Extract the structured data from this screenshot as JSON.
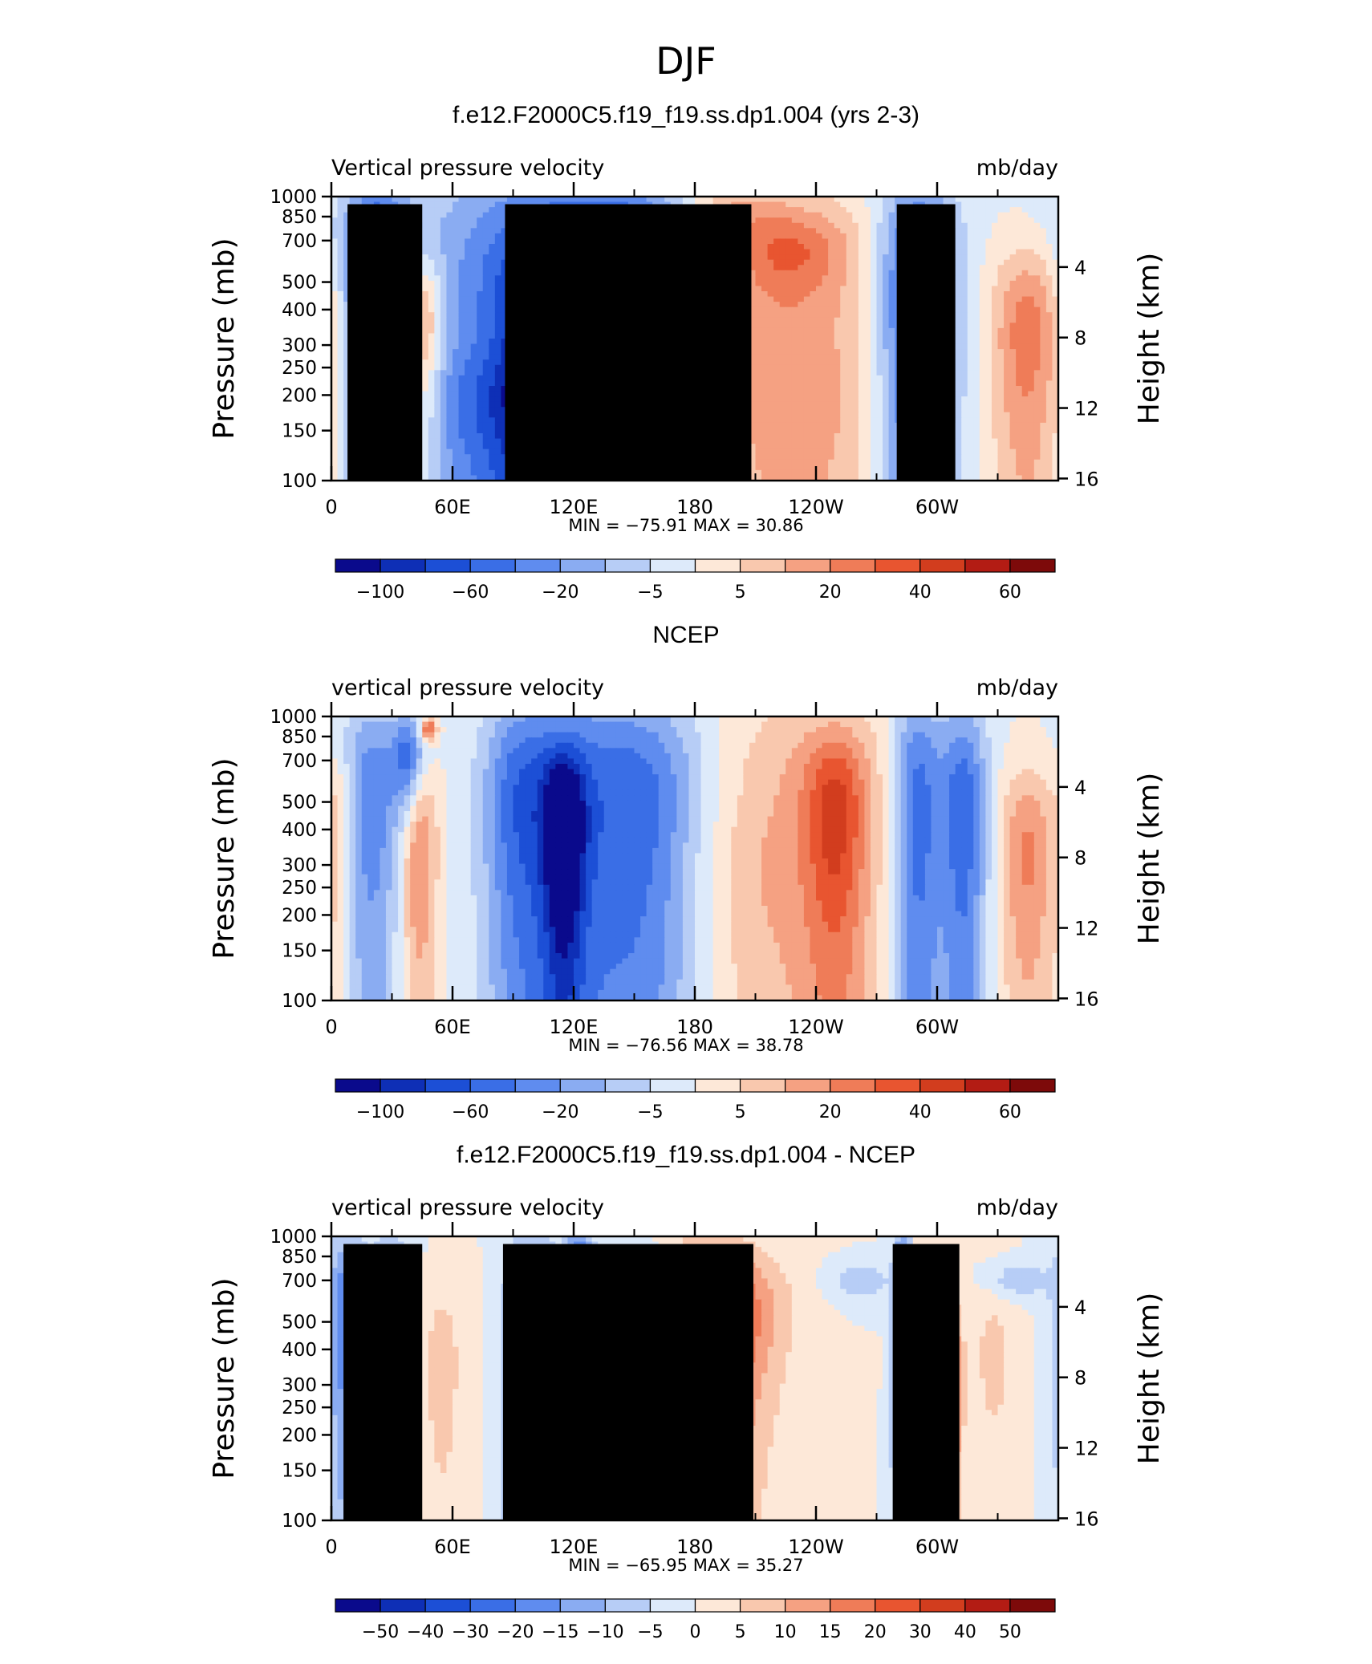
{
  "figure": {
    "super_title": "DJF"
  },
  "chart_data": [
    {
      "type": "heatmap",
      "title": "f.e12.F2000C5.f19_f19.ss.dp1.004 (yrs 2-3)",
      "left_label": "Vertical pressure velocity",
      "right_label": "mb/day",
      "ylabel": "Pressure (mb)",
      "ylabel_right": "Height (km)",
      "x_ticks": [
        "0",
        "60E",
        "120E",
        "180",
        "120W",
        "60W"
      ],
      "x_tick_lon": [
        0,
        60,
        120,
        180,
        240,
        300
      ],
      "xlim": [
        0,
        360
      ],
      "y_ticks": [
        "100",
        "150",
        "200",
        "250",
        "300",
        "400",
        "500",
        "700",
        "850",
        "1000"
      ],
      "y_tick_p": [
        100,
        150,
        200,
        250,
        300,
        400,
        500,
        700,
        850,
        1000
      ],
      "ylim": [
        1000,
        100
      ],
      "y_scale": "log",
      "height_ticks": [
        "16",
        "12",
        "8",
        "4"
      ],
      "height_tick_km": [
        16,
        12,
        8,
        4
      ],
      "stats": "MIN = −75.91   MAX =   30.86",
      "colorbar_labels": [
        "−100",
        "−60",
        "−20",
        "−5",
        "5",
        "20",
        "40",
        "60"
      ],
      "colorbar_label_slots": [
        1,
        3,
        5,
        7,
        9,
        11,
        13,
        15
      ],
      "blobs": [
        {
          "lon": 5,
          "p": 250,
          "w": 8,
          "h": 180,
          "v": 8
        },
        {
          "lon": 22,
          "p": 500,
          "w": 16,
          "h": 600,
          "v": -55
        },
        {
          "lon": 26,
          "p": 300,
          "w": 6,
          "h": 80,
          "v": -20
        },
        {
          "lon": 45,
          "p": 350,
          "w": 10,
          "h": 260,
          "v": 40
        },
        {
          "lon": 120,
          "p": 450,
          "w": 70,
          "h": 800,
          "v": -55
        },
        {
          "lon": 105,
          "p": 350,
          "w": 20,
          "h": 300,
          "v": -30
        },
        {
          "lon": 125,
          "p": 350,
          "w": 15,
          "h": 300,
          "v": -30
        },
        {
          "lon": 155,
          "p": 620,
          "w": 26,
          "h": 260,
          "v": -45
        },
        {
          "lon": 100,
          "p": 180,
          "w": 60,
          "h": 100,
          "v": -20
        },
        {
          "lon": 215,
          "p": 420,
          "w": 55,
          "h": 650,
          "v": 30
        },
        {
          "lon": 225,
          "p": 650,
          "w": 30,
          "h": 200,
          "v": 20
        },
        {
          "lon": 228,
          "p": 180,
          "w": 50,
          "h": 120,
          "v": 6
        },
        {
          "lon": 290,
          "p": 450,
          "w": 20,
          "h": 650,
          "v": -55
        },
        {
          "lon": 345,
          "p": 320,
          "w": 18,
          "h": 300,
          "v": 35
        },
        {
          "lon": 195,
          "p": 900,
          "w": 30,
          "h": 160,
          "v": 15
        }
      ],
      "land_bars": [
        {
          "lon0": 8,
          "lon1": 45,
          "p0": 940
        },
        {
          "lon0": 31,
          "lon1": 41,
          "p0": 860
        },
        {
          "lon0": 86,
          "lon1": 208,
          "p0": 940
        },
        {
          "lon0": 280,
          "lon1": 309,
          "p0": 940
        }
      ]
    },
    {
      "type": "heatmap",
      "title": "NCEP",
      "left_label": "vertical pressure velocity",
      "right_label": "mb/day",
      "ylabel": "Pressure (mb)",
      "ylabel_right": "Height (km)",
      "x_ticks": [
        "0",
        "60E",
        "120E",
        "180",
        "120W",
        "60W"
      ],
      "x_tick_lon": [
        0,
        60,
        120,
        180,
        240,
        300
      ],
      "xlim": [
        0,
        360
      ],
      "y_ticks": [
        "100",
        "150",
        "200",
        "250",
        "300",
        "400",
        "500",
        "700",
        "850",
        "1000"
      ],
      "y_tick_p": [
        100,
        150,
        200,
        250,
        300,
        400,
        500,
        700,
        850,
        1000
      ],
      "ylim": [
        1000,
        100
      ],
      "y_scale": "log",
      "height_ticks": [
        "16",
        "12",
        "8",
        "4"
      ],
      "height_tick_km": [
        16,
        12,
        8,
        4
      ],
      "stats": "MIN = −76.56   MAX =   38.78",
      "colorbar_labels": [
        "−100",
        "−60",
        "−20",
        "−5",
        "5",
        "20",
        "40",
        "60"
      ],
      "colorbar_label_slots": [
        1,
        3,
        5,
        7,
        9,
        11,
        13,
        15
      ],
      "blobs": [
        {
          "lon": 4,
          "p": 400,
          "w": 6,
          "h": 300,
          "v": 15
        },
        {
          "lon": 20,
          "p": 500,
          "w": 14,
          "h": 600,
          "v": -35
        },
        {
          "lon": 38,
          "p": 700,
          "w": 8,
          "h": 300,
          "v": -40
        },
        {
          "lon": 43,
          "p": 350,
          "w": 9,
          "h": 300,
          "v": 35
        },
        {
          "lon": 48,
          "p": 900,
          "w": 4,
          "h": 80,
          "v": 45
        },
        {
          "lon": 110,
          "p": 450,
          "w": 30,
          "h": 800,
          "v": -40
        },
        {
          "lon": 155,
          "p": 450,
          "w": 30,
          "h": 700,
          "v": -40
        },
        {
          "lon": 115,
          "p": 400,
          "w": 10,
          "h": 300,
          "v": -55
        },
        {
          "lon": 90,
          "p": 500,
          "w": 15,
          "h": 500,
          "v": -20
        },
        {
          "lon": 235,
          "p": 450,
          "w": 45,
          "h": 700,
          "v": 20
        },
        {
          "lon": 250,
          "p": 450,
          "w": 15,
          "h": 400,
          "v": 35
        },
        {
          "lon": 290,
          "p": 450,
          "w": 12,
          "h": 700,
          "v": -45
        },
        {
          "lon": 313,
          "p": 450,
          "w": 12,
          "h": 600,
          "v": -45
        },
        {
          "lon": 345,
          "p": 320,
          "w": 14,
          "h": 300,
          "v": 30
        },
        {
          "lon": 200,
          "p": 250,
          "w": 35,
          "h": 200,
          "v": 6
        }
      ],
      "land_bars": []
    },
    {
      "type": "heatmap",
      "title": "f.e12.F2000C5.f19_f19.ss.dp1.004 - NCEP",
      "left_label": "vertical pressure velocity",
      "right_label": "mb/day",
      "ylabel": "Pressure (mb)",
      "ylabel_right": "Height (km)",
      "x_ticks": [
        "0",
        "60E",
        "120E",
        "180",
        "120W",
        "60W"
      ],
      "x_tick_lon": [
        0,
        60,
        120,
        180,
        240,
        300
      ],
      "xlim": [
        0,
        360
      ],
      "y_ticks": [
        "100",
        "150",
        "200",
        "250",
        "300",
        "400",
        "500",
        "700",
        "850",
        "1000"
      ],
      "y_tick_p": [
        100,
        150,
        200,
        250,
        300,
        400,
        500,
        700,
        850,
        1000
      ],
      "ylim": [
        1000,
        100
      ],
      "y_scale": "log",
      "height_ticks": [
        "16",
        "12",
        "8",
        "4"
      ],
      "height_tick_km": [
        16,
        12,
        8,
        4
      ],
      "stats": "MIN = −65.95   MAX =   35.27",
      "colorbar_labels": [
        "−50",
        "−40",
        "−30",
        "−20",
        "−15",
        "−10",
        "−5",
        "0",
        "5",
        "10",
        "15",
        "20",
        "30",
        "40",
        "50"
      ],
      "colorbar_label_slots": [
        1,
        2,
        3,
        4,
        5,
        6,
        7,
        8,
        9,
        10,
        11,
        12,
        13,
        14,
        15
      ],
      "blobs": [
        {
          "lon": 8,
          "p": 500,
          "w": 10,
          "h": 500,
          "v": -25
        },
        {
          "lon": 22,
          "p": 350,
          "w": 8,
          "h": 300,
          "v": -35
        },
        {
          "lon": 30,
          "p": 650,
          "w": 8,
          "h": 300,
          "v": -25
        },
        {
          "lon": 55,
          "p": 350,
          "w": 10,
          "h": 300,
          "v": 10
        },
        {
          "lon": 95,
          "p": 350,
          "w": 8,
          "h": 500,
          "v": -40
        },
        {
          "lon": 107,
          "p": 350,
          "w": 5,
          "h": 500,
          "v": -30
        },
        {
          "lon": 122,
          "p": 400,
          "w": 7,
          "h": 600,
          "v": -45
        },
        {
          "lon": 155,
          "p": 620,
          "w": 25,
          "h": 250,
          "v": -50
        },
        {
          "lon": 180,
          "p": 450,
          "w": 30,
          "h": 500,
          "v": 28
        },
        {
          "lon": 195,
          "p": 550,
          "w": 30,
          "h": 300,
          "v": 15
        },
        {
          "lon": 283,
          "p": 420,
          "w": 4,
          "h": 500,
          "v": -55
        },
        {
          "lon": 293,
          "p": 300,
          "w": 6,
          "h": 400,
          "v": 30
        },
        {
          "lon": 306,
          "p": 300,
          "w": 6,
          "h": 300,
          "v": 25
        },
        {
          "lon": 328,
          "p": 380,
          "w": 12,
          "h": 300,
          "v": 8
        },
        {
          "lon": 262,
          "p": 700,
          "w": 15,
          "h": 100,
          "v": -12
        },
        {
          "lon": 340,
          "p": 700,
          "w": 15,
          "h": 100,
          "v": -12
        }
      ],
      "land_bars": [
        {
          "lon0": 6,
          "lon1": 45,
          "p0": 940
        },
        {
          "lon0": 29,
          "lon1": 42,
          "p0": 860
        },
        {
          "lon0": 85,
          "lon1": 209,
          "p0": 940
        },
        {
          "lon0": 278,
          "lon1": 311,
          "p0": 940
        }
      ]
    }
  ],
  "colorbar": {
    "colors": [
      "#0a0a8c",
      "#0e2fb6",
      "#1c4fd6",
      "#3a6ee6",
      "#5f8cef",
      "#8aacf2",
      "#b7cdf6",
      "#ddeafa",
      "#fde8d8",
      "#f9c8ae",
      "#f5a182",
      "#ef7c58",
      "#e85530",
      "#d23d1e",
      "#b31c14",
      "#7d0a0a"
    ]
  }
}
